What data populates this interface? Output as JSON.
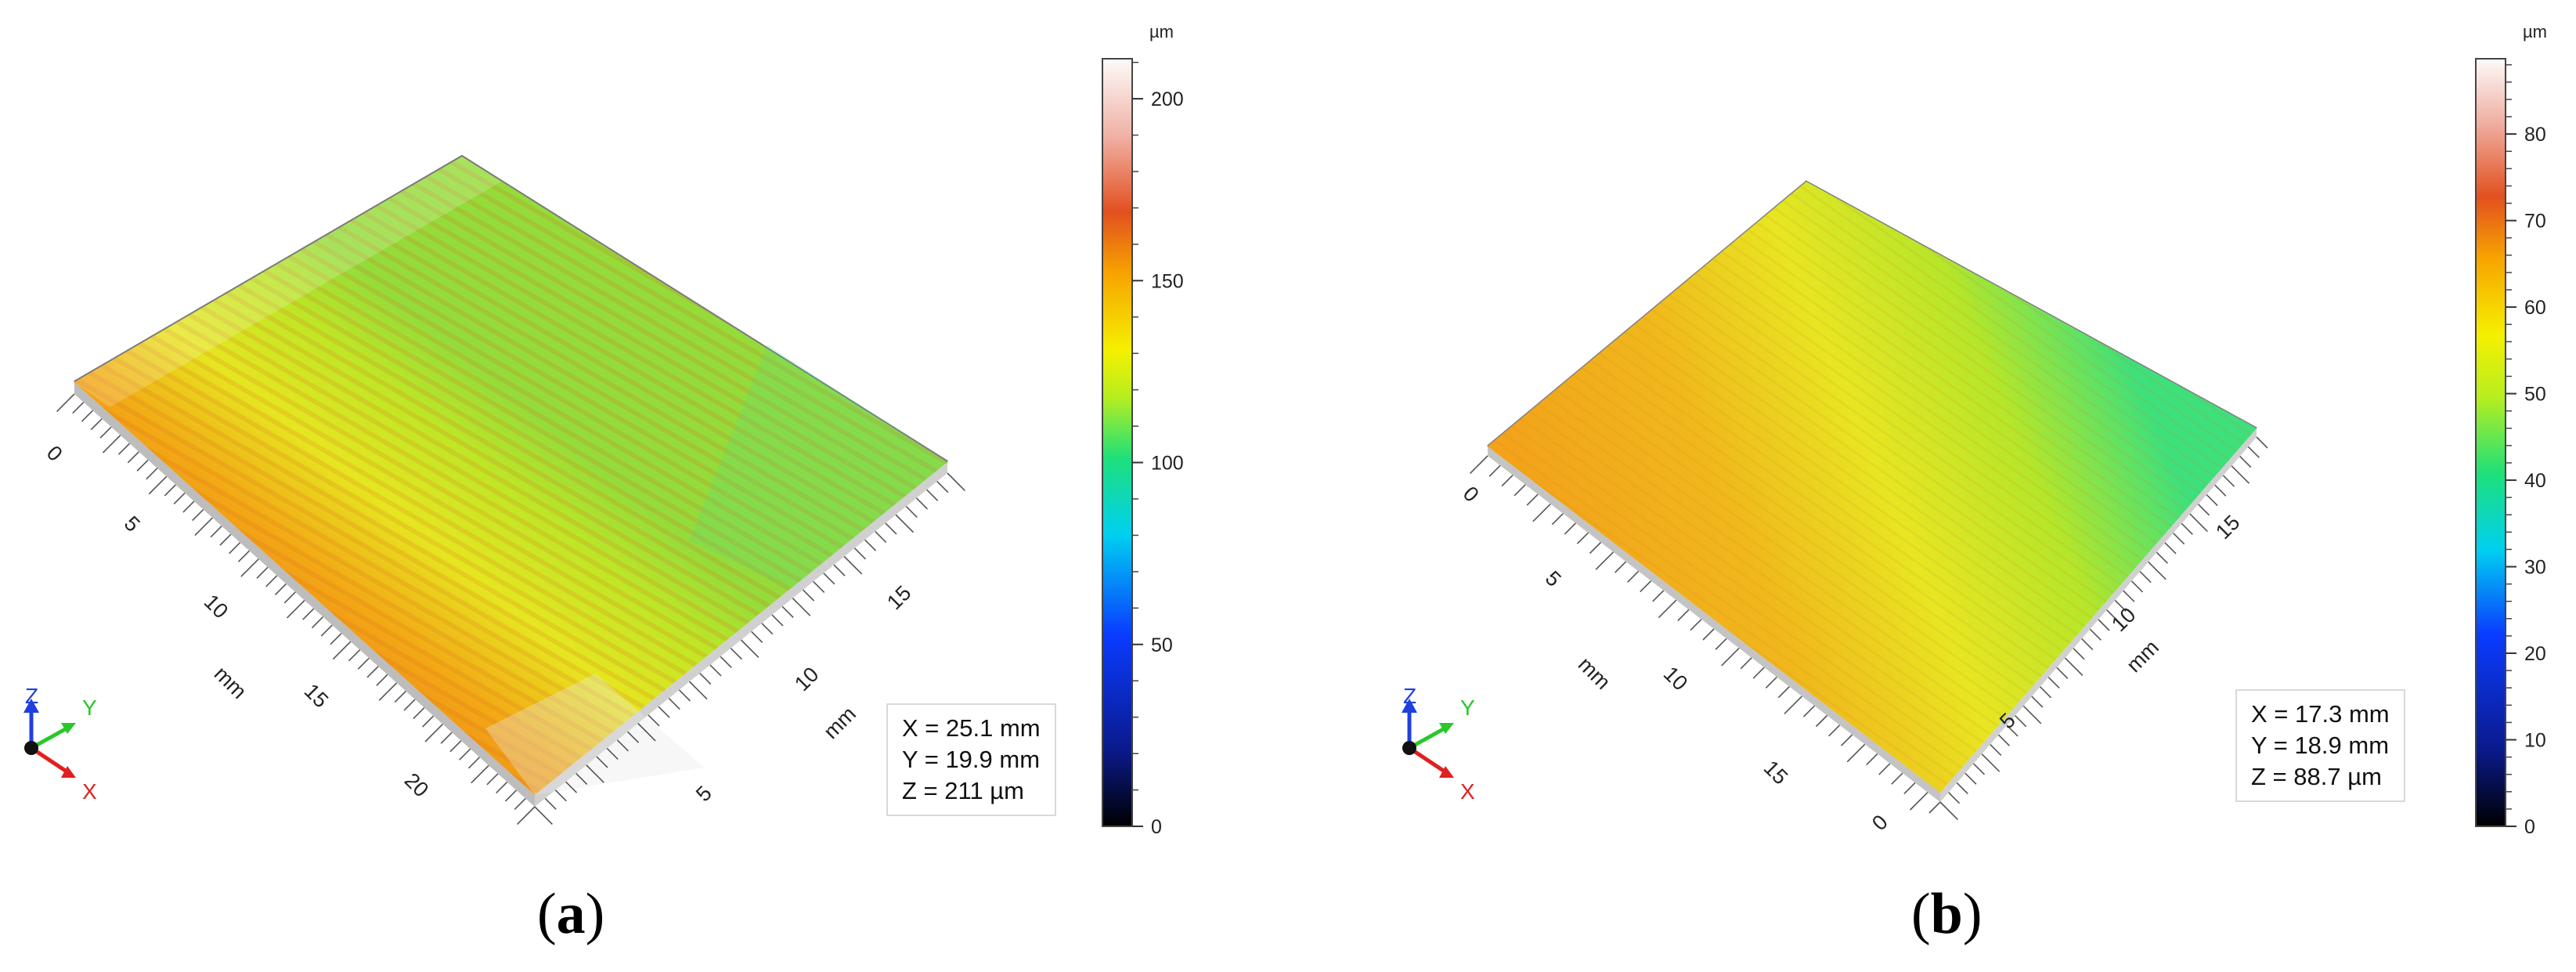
{
  "figure": {
    "panels": [
      {
        "caption_letter": "a",
        "unit_mm": "mm",
        "x_ticks": [
          "0",
          "5",
          "10",
          "15",
          "20"
        ],
        "y_ticks": [
          "5",
          "10",
          "15"
        ],
        "triad": {
          "x": "X",
          "y": "Y",
          "z": "Z"
        },
        "dims": [
          "X = 25.1 mm",
          "Y = 19.9 mm",
          "Z = 211 µm"
        ],
        "colorbar": {
          "unit": "µm",
          "min": 0,
          "max": 211,
          "ticks": [
            "200",
            "150",
            "100",
            "50",
            "0"
          ],
          "tick_values": [
            200,
            150,
            100,
            50,
            0
          ]
        }
      },
      {
        "caption_letter": "b",
        "unit_mm": "mm",
        "x_ticks": [
          "0",
          "5",
          "10",
          "15"
        ],
        "y_ticks": [
          "0",
          "5",
          "10",
          "15"
        ],
        "triad": {
          "x": "X",
          "y": "Y",
          "z": "Z"
        },
        "dims": [
          "X = 17.3 mm",
          "Y = 18.9 mm",
          "Z = 88.7 µm"
        ],
        "colorbar": {
          "unit": "µm",
          "min": 0,
          "max": 88.7,
          "ticks": [
            "80",
            "70",
            "60",
            "50",
            "40",
            "30",
            "20",
            "10",
            "0"
          ],
          "tick_values": [
            80,
            70,
            60,
            50,
            40,
            30,
            20,
            10,
            0
          ]
        }
      }
    ]
  },
  "chart_data": [
    {
      "type": "heatmap",
      "description": "3D surface topography, height map",
      "x_extent_mm": 25.1,
      "y_extent_mm": 19.9,
      "z_range_um": [
        0,
        211
      ],
      "colorbar_ticks": [
        0,
        50,
        100,
        150,
        200
      ]
    },
    {
      "type": "heatmap",
      "description": "3D surface topography, height map",
      "x_extent_mm": 17.3,
      "y_extent_mm": 18.9,
      "z_range_um": [
        0,
        88.7
      ],
      "colorbar_ticks": [
        0,
        10,
        20,
        30,
        40,
        50,
        60,
        70,
        80
      ]
    }
  ]
}
